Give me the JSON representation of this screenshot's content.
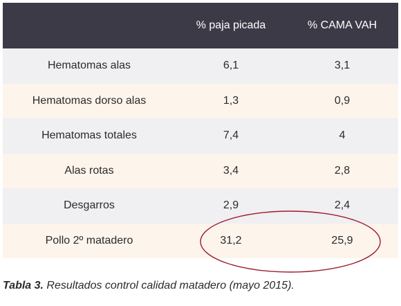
{
  "table": {
    "headers": [
      "",
      "% paja picada",
      "% CAMA VAH"
    ],
    "rows": [
      {
        "label": "Hematomas alas",
        "paja": "6,1",
        "cama": "3,1"
      },
      {
        "label": "Hematomas dorso alas",
        "paja": "1,3",
        "cama": "0,9"
      },
      {
        "label": "Hematomas totales",
        "paja": "7,4",
        "cama": "4"
      },
      {
        "label": "Alas rotas",
        "paja": "3,4",
        "cama": "2,8"
      },
      {
        "label": "Desgarros",
        "paja": "2,9",
        "cama": "2,4"
      },
      {
        "label": "Pollo 2º matadero",
        "paja": "31,2",
        "cama": "25,9"
      }
    ]
  },
  "caption": {
    "label": "Tabla 3.",
    "text": " Resultados control calidad matadero (mayo 2015)."
  },
  "colors": {
    "header_bg": "#3d3a48",
    "row_alt_gray": "#f0eff1",
    "row_alt_cream": "#fdf4ec",
    "highlight": "#9b1c2c"
  }
}
